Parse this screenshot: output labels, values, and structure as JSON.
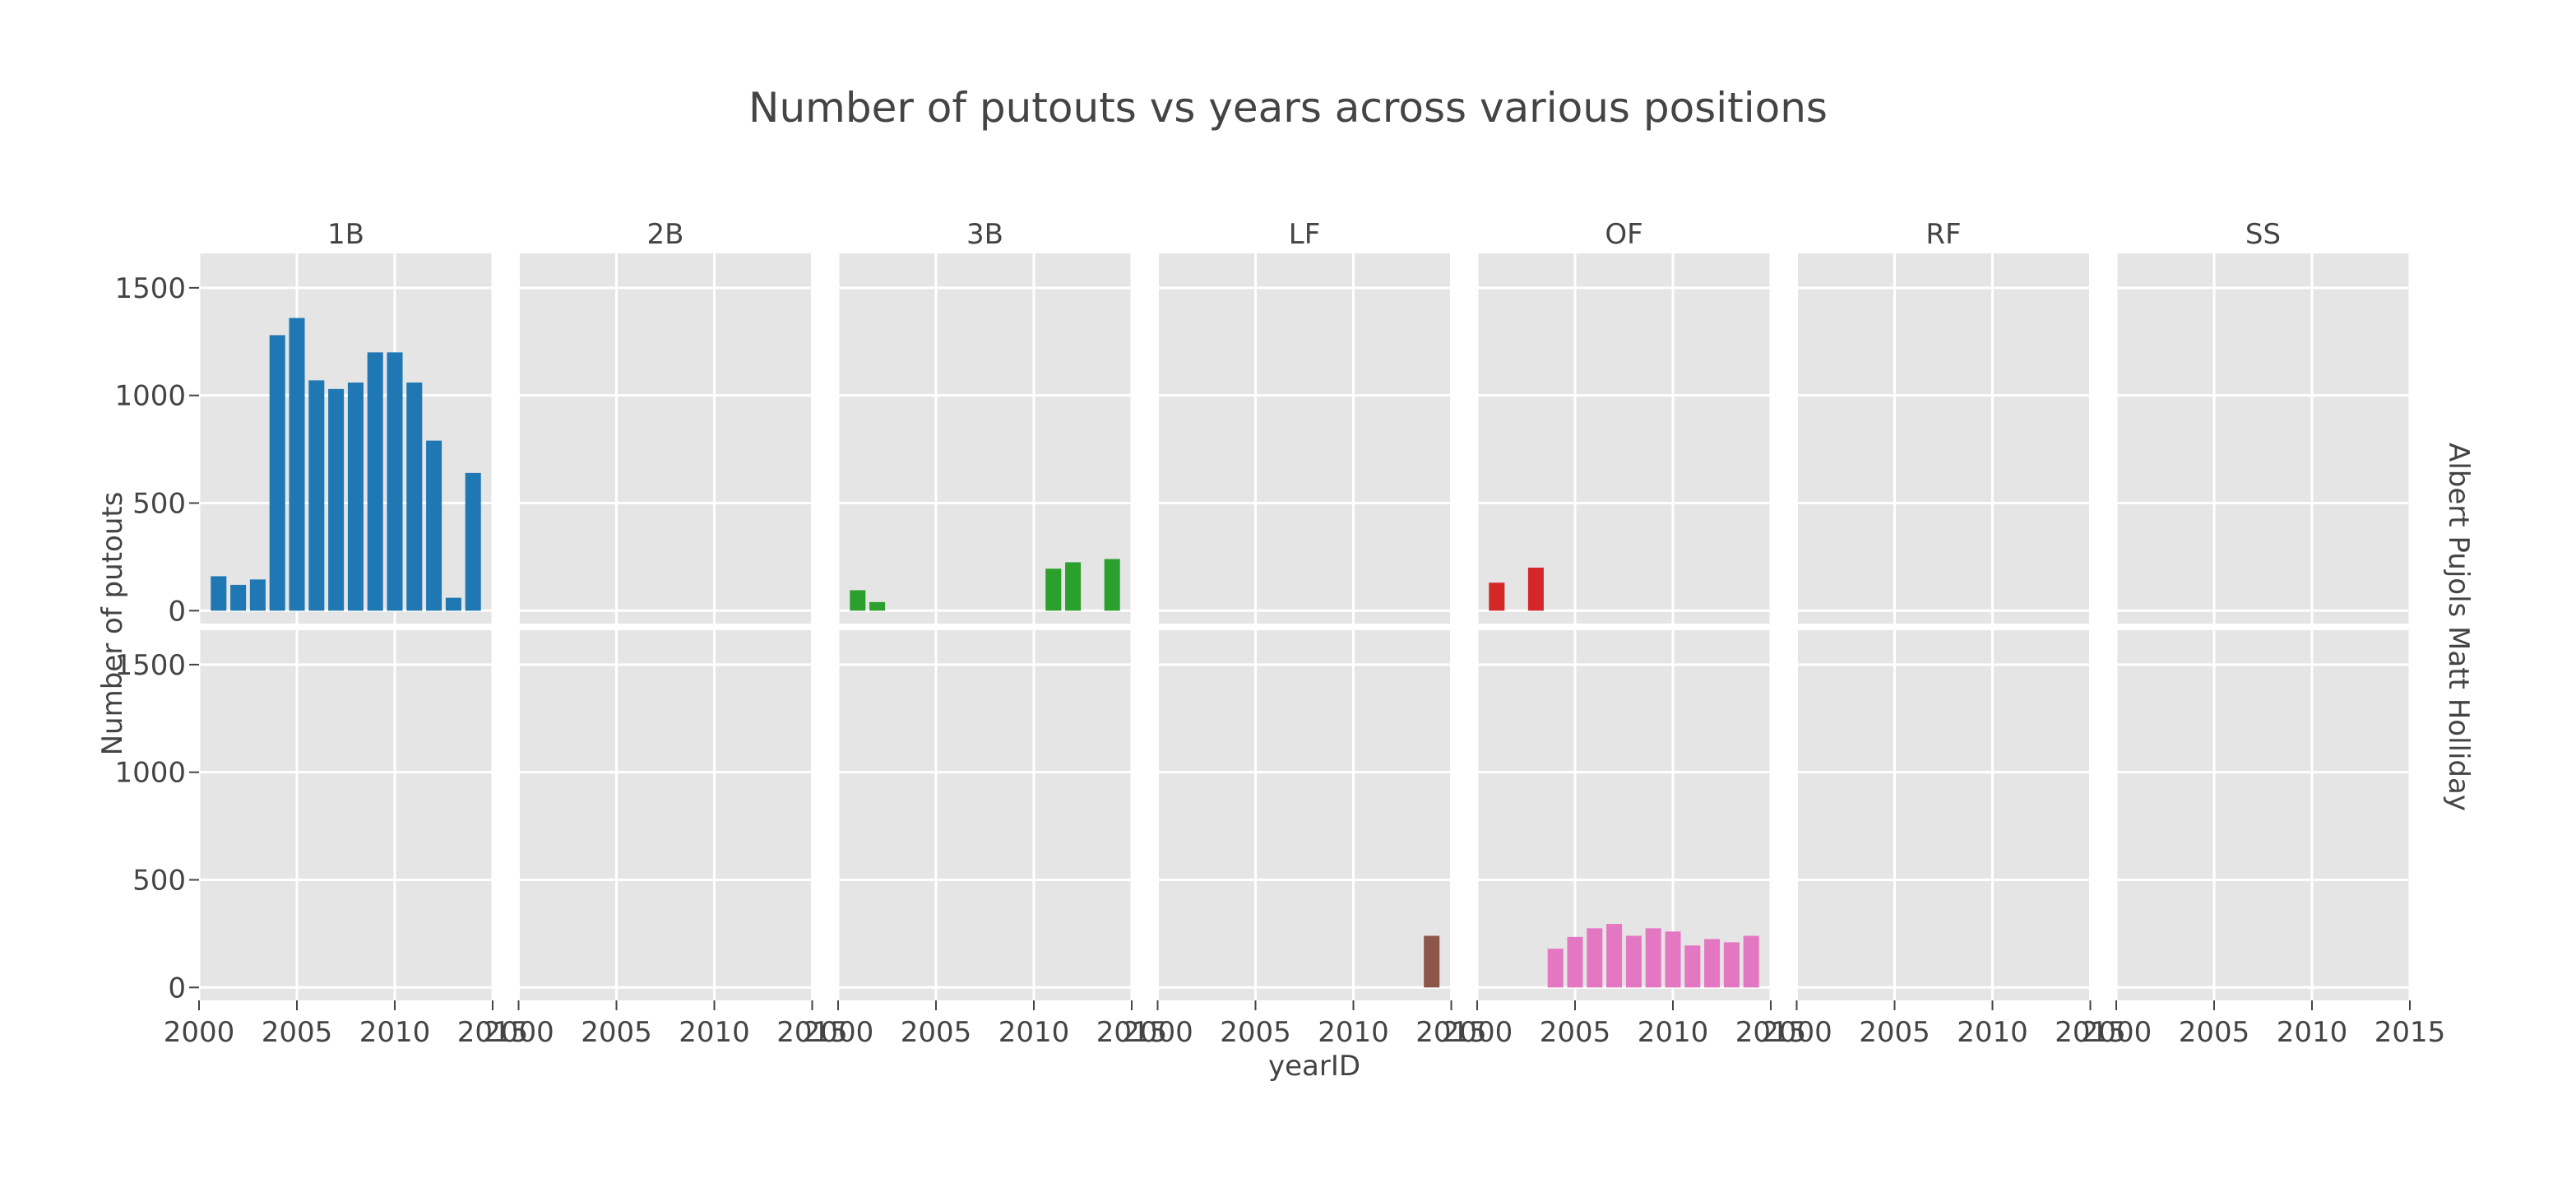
{
  "chart_data": {
    "type": "bar",
    "title": "Number of putouts vs years across various positions",
    "xlabel": "yearID",
    "ylabel": "Number of putouts",
    "columns": [
      "1B",
      "2B",
      "3B",
      "LF",
      "OF",
      "RF",
      "SS"
    ],
    "rows": [
      "Albert Pujols",
      "Matt Holliday"
    ],
    "xlim": [
      2000,
      2015
    ],
    "ylim": [
      -60,
      1660
    ],
    "xticks": [
      2000,
      2005,
      2010,
      2015
    ],
    "yticks": [
      0,
      500,
      1000,
      1500
    ],
    "grid": true,
    "colors": {
      "1B": "#1f77b4",
      "3B": "#2ca02c",
      "OF-Albert Pujols": "#d62728",
      "LF": "#8c564b",
      "OF-Matt Holliday": "#e377c2"
    },
    "series": [
      {
        "panel": "Albert Pujols|1B",
        "color": "#1f77b4",
        "x": [
          2001,
          2002,
          2003,
          2004,
          2005,
          2006,
          2007,
          2008,
          2009,
          2010,
          2011,
          2012,
          2013,
          2014
        ],
        "values": [
          160,
          120,
          145,
          1280,
          1360,
          1070,
          1030,
          1060,
          1200,
          1200,
          1060,
          790,
          60,
          640
        ]
      },
      {
        "panel": "Albert Pujols|3B",
        "color": "#2ca02c",
        "x": [
          2001,
          2002,
          2011,
          2012,
          2014
        ],
        "values": [
          95,
          40,
          195,
          225,
          240
        ]
      },
      {
        "panel": "Albert Pujols|OF",
        "color": "#d62728",
        "x": [
          2001,
          2003
        ],
        "values": [
          130,
          200
        ]
      },
      {
        "panel": "Matt Holliday|LF",
        "color": "#8c564b",
        "x": [
          2014
        ],
        "values": [
          240
        ]
      },
      {
        "panel": "Matt Holliday|OF",
        "color": "#e377c2",
        "x": [
          2004,
          2005,
          2006,
          2007,
          2008,
          2009,
          2010,
          2011,
          2012,
          2013,
          2014
        ],
        "values": [
          180,
          235,
          275,
          295,
          240,
          275,
          260,
          195,
          225,
          210,
          240
        ]
      }
    ]
  }
}
